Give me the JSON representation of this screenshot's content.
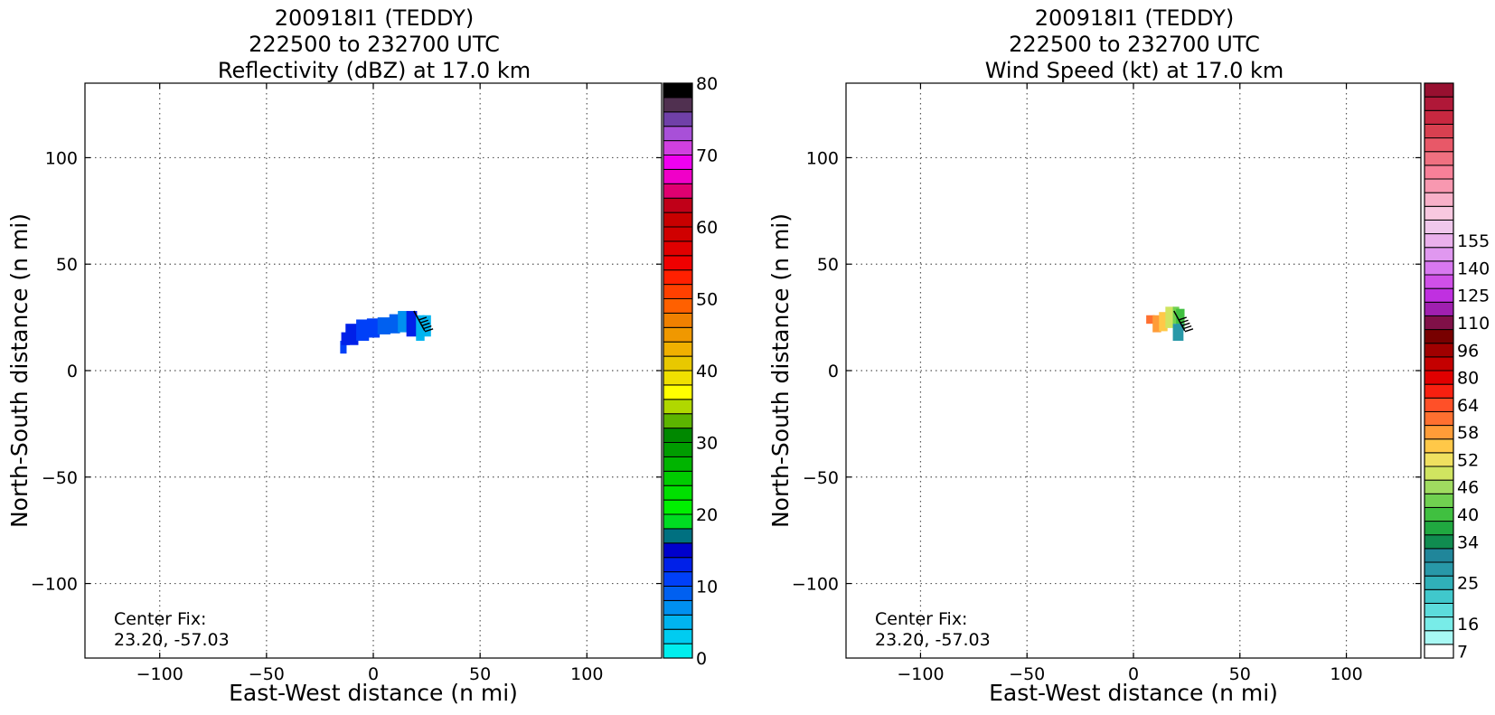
{
  "chart_data": [
    {
      "type": "heatmap",
      "title_lines": [
        "200918I1 (TEDDY)",
        "222500 to 232700 UTC",
        "Reflectivity (dBZ) at 17.0 km"
      ],
      "xlabel": "East-West distance (n mi)",
      "ylabel": "North-South distance (n mi)",
      "xlim": [
        -135,
        135
      ],
      "ylim": [
        -135,
        135
      ],
      "xticks": [
        -100,
        -50,
        0,
        50,
        100
      ],
      "yticks": [
        -100,
        -50,
        0,
        50,
        100
      ],
      "grid": true,
      "annotation": {
        "line1": "Center Fix:",
        "line2": "23.20, -57.03"
      },
      "colorbar": {
        "min": 0,
        "max": 80,
        "tick_labels": [
          "0",
          "10",
          "20",
          "30",
          "40",
          "50",
          "60",
          "70",
          "80"
        ],
        "tick_values": [
          0,
          10,
          20,
          30,
          40,
          50,
          60,
          70,
          80
        ],
        "colors": [
          "#00eeee",
          "#00ccf0",
          "#00b4f0",
          "#0090f0",
          "#0060f0",
          "#0040f8",
          "#0020e8",
          "#0000cc",
          "#007080",
          "#00dd22",
          "#00f000",
          "#00e000",
          "#00cc00",
          "#00b400",
          "#009c00",
          "#008800",
          "#5cb400",
          "#b0d800",
          "#ffff00",
          "#f0e000",
          "#e8c800",
          "#f0b000",
          "#f09800",
          "#f08000",
          "#ff6000",
          "#ff4000",
          "#ff2000",
          "#f00000",
          "#e00000",
          "#d00000",
          "#c80000",
          "#c00018",
          "#e00070",
          "#f000c8",
          "#f000f0",
          "#d040e0",
          "#a850d8",
          "#7040a8",
          "#503050",
          "#000000"
        ]
      },
      "data_region": {
        "description_values": "reflectivity 5-20 dBZ blobs",
        "cells": [
          {
            "x": -14,
            "y": 11,
            "w": 3,
            "h": 6,
            "v": 10
          },
          {
            "x": -13,
            "y": 15,
            "w": 4,
            "h": 6,
            "v": 12
          },
          {
            "x": -10,
            "y": 17,
            "w": 6,
            "h": 10,
            "v": 12
          },
          {
            "x": -5,
            "y": 19,
            "w": 6,
            "h": 10,
            "v": 11
          },
          {
            "x": 0,
            "y": 20,
            "w": 6,
            "h": 9,
            "v": 10
          },
          {
            "x": 5,
            "y": 21,
            "w": 6,
            "h": 8,
            "v": 9
          },
          {
            "x": 10,
            "y": 22,
            "w": 5,
            "h": 9,
            "v": 8
          },
          {
            "x": 14,
            "y": 23,
            "w": 5,
            "h": 10,
            "v": 6
          },
          {
            "x": 18,
            "y": 22,
            "w": 5,
            "h": 12,
            "v": 13
          },
          {
            "x": 22,
            "y": 20,
            "w": 4,
            "h": 12,
            "v": 5
          },
          {
            "x": 25,
            "y": 21,
            "w": 4,
            "h": 10,
            "v": 4
          }
        ]
      }
    },
    {
      "type": "heatmap",
      "title_lines": [
        "200918I1 (TEDDY)",
        "222500 to 232700 UTC",
        "Wind Speed (kt) at 17.0 km"
      ],
      "xlabel": "East-West distance (n mi)",
      "ylabel": "North-South distance (n mi)",
      "xlim": [
        -135,
        135
      ],
      "ylim": [
        -135,
        135
      ],
      "xticks": [
        -100,
        -50,
        0,
        50,
        100
      ],
      "yticks": [
        -100,
        -50,
        0,
        50,
        100
      ],
      "grid": true,
      "annotation": {
        "line1": "Center Fix:",
        "line2": "23.20, -57.03"
      },
      "colorbar": {
        "min": 7,
        "max": 160,
        "tick_labels": [
          "7",
          "16",
          "25",
          "34",
          "40",
          "46",
          "52",
          "58",
          "64",
          "80",
          "96",
          "110",
          "125",
          "140",
          "155"
        ],
        "tick_index": [
          0,
          2,
          5,
          8,
          10,
          12,
          14,
          16,
          18,
          20,
          22,
          24,
          26,
          28,
          30
        ],
        "colors": [
          "#ffffff",
          "#a8f8f4",
          "#78ece8",
          "#5cdcdc",
          "#40c8cc",
          "#30b0b8",
          "#2898a8",
          "#20869a",
          "#108c50",
          "#20a840",
          "#40c040",
          "#70d050",
          "#a0dc60",
          "#d0e460",
          "#f0e060",
          "#ffc848",
          "#ff9c38",
          "#ff7030",
          "#ff5028",
          "#f82010",
          "#e00000",
          "#c40000",
          "#a00000",
          "#780000",
          "#801048",
          "#a020b0",
          "#c030e0",
          "#d050e8",
          "#d878f0",
          "#e098f0",
          "#eab0ec",
          "#f0c8ec",
          "#f8c8e0",
          "#f8b0c8",
          "#f898b0",
          "#f88098",
          "#f07080",
          "#e85868",
          "#d84050",
          "#c82840",
          "#b01838",
          "#981030"
        ]
      },
      "data_region": {
        "cells": [
          {
            "x": 8,
            "y": 24,
            "w": 4,
            "h": 4,
            "v": 60
          },
          {
            "x": 11,
            "y": 22,
            "w": 4,
            "h": 8,
            "v": 58
          },
          {
            "x": 14,
            "y": 23,
            "w": 4,
            "h": 9,
            "v": 54
          },
          {
            "x": 17,
            "y": 25,
            "w": 4,
            "h": 10,
            "v": 48
          },
          {
            "x": 20,
            "y": 26,
            "w": 3,
            "h": 8,
            "v": 44
          },
          {
            "x": 22,
            "y": 24,
            "w": 4,
            "h": 10,
            "v": 40
          },
          {
            "x": 21,
            "y": 18,
            "w": 5,
            "h": 8,
            "v": 28
          }
        ]
      }
    }
  ]
}
